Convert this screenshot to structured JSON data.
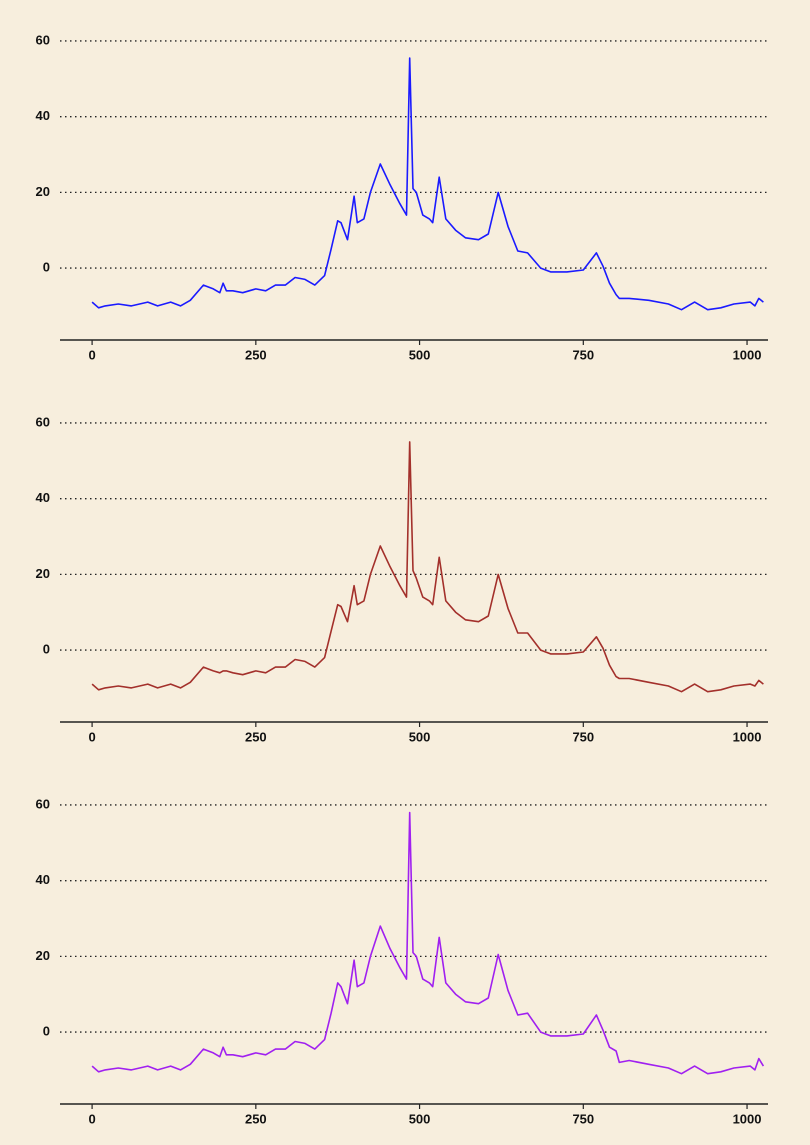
{
  "chart_data": [
    {
      "type": "line",
      "x": [
        0,
        10,
        20,
        40,
        60,
        85,
        100,
        120,
        135,
        150,
        170,
        185,
        195,
        200,
        205,
        215,
        230,
        250,
        265,
        280,
        295,
        310,
        325,
        340,
        355,
        365,
        375,
        380,
        390,
        400,
        405,
        415,
        425,
        440,
        455,
        470,
        480,
        485,
        490,
        495,
        505,
        515,
        520,
        530,
        540,
        555,
        570,
        590,
        605,
        620,
        635,
        650,
        665,
        685,
        700,
        725,
        750,
        770,
        780,
        790,
        800,
        805,
        820,
        850,
        880,
        900,
        920,
        940,
        960,
        980,
        1005,
        1012,
        1018,
        1025
      ],
      "series": [
        {
          "color": "#1a1aff",
          "values": [
            -9,
            -10.5,
            -10,
            -9.5,
            -10,
            -9,
            -10,
            -9,
            -10,
            -8.5,
            -4.5,
            -5.5,
            -6.5,
            -4,
            -6,
            -6,
            -6.5,
            -5.5,
            -6,
            -4.5,
            -4.5,
            -2.5,
            -3,
            -4.5,
            -2,
            5,
            12.5,
            12,
            7.5,
            19,
            12,
            13,
            20,
            27.5,
            22,
            17,
            14,
            55.5,
            21,
            20,
            14,
            13,
            12,
            24,
            13,
            10,
            8,
            7.5,
            9,
            20,
            11,
            4.5,
            4,
            0,
            -1,
            -1,
            -0.5,
            4,
            0.5,
            -4,
            -7,
            -8,
            -8,
            -8.5,
            -9.5,
            -11,
            -9,
            -11,
            -10.5,
            -9.5,
            -9,
            -10,
            -8,
            -9
          ]
        }
      ],
      "xlim": [
        -49,
        1032
      ],
      "ylim": [
        -19,
        63
      ],
      "xticks": [
        0,
        250,
        500,
        750,
        1000
      ],
      "yticks": [
        0,
        20,
        40,
        60
      ],
      "grid": true
    },
    {
      "type": "line",
      "x": [
        0,
        10,
        20,
        40,
        60,
        85,
        100,
        120,
        135,
        150,
        170,
        185,
        195,
        200,
        205,
        215,
        230,
        250,
        265,
        280,
        295,
        310,
        325,
        340,
        355,
        365,
        375,
        380,
        390,
        400,
        405,
        415,
        425,
        440,
        455,
        470,
        480,
        485,
        490,
        495,
        505,
        515,
        520,
        530,
        540,
        555,
        570,
        590,
        605,
        620,
        635,
        650,
        665,
        685,
        700,
        725,
        750,
        770,
        780,
        790,
        800,
        805,
        820,
        850,
        880,
        900,
        920,
        940,
        960,
        980,
        1005,
        1012,
        1018,
        1025
      ],
      "series": [
        {
          "color": "#a3302b",
          "values": [
            -9,
            -10.5,
            -10,
            -9.5,
            -10,
            -9,
            -10,
            -9,
            -10,
            -8.5,
            -4.5,
            -5.5,
            -6,
            -5.5,
            -5.5,
            -6,
            -6.5,
            -5.5,
            -6,
            -4.5,
            -4.5,
            -2.5,
            -3,
            -4.5,
            -2,
            5,
            12,
            11.5,
            7.5,
            17,
            12,
            13,
            20,
            27.5,
            22,
            17,
            14,
            55,
            21,
            19,
            14,
            13,
            12,
            24.5,
            13,
            10,
            8,
            7.5,
            9,
            20,
            11,
            4.5,
            4.5,
            0,
            -1,
            -1,
            -0.5,
            3.5,
            0.5,
            -4,
            -7,
            -7.5,
            -7.5,
            -8.5,
            -9.5,
            -11,
            -9,
            -11,
            -10.5,
            -9.5,
            -9,
            -9.5,
            -8,
            -9
          ]
        }
      ],
      "xlim": [
        -49,
        1032
      ],
      "ylim": [
        -19,
        63
      ],
      "xticks": [
        0,
        250,
        500,
        750,
        1000
      ],
      "yticks": [
        0,
        20,
        40,
        60
      ],
      "grid": true
    },
    {
      "type": "line",
      "x": [
        0,
        10,
        20,
        40,
        60,
        85,
        100,
        120,
        135,
        150,
        170,
        185,
        195,
        200,
        205,
        215,
        230,
        250,
        265,
        280,
        295,
        310,
        325,
        340,
        355,
        365,
        375,
        380,
        390,
        400,
        405,
        415,
        425,
        440,
        455,
        470,
        480,
        485,
        490,
        495,
        505,
        515,
        520,
        530,
        540,
        555,
        570,
        590,
        605,
        620,
        635,
        650,
        665,
        685,
        700,
        725,
        750,
        770,
        780,
        790,
        800,
        805,
        820,
        850,
        880,
        900,
        920,
        940,
        960,
        980,
        1005,
        1012,
        1018,
        1025
      ],
      "series": [
        {
          "color": "#a020f0",
          "values": [
            -9,
            -10.5,
            -10,
            -9.5,
            -10,
            -9,
            -10,
            -9,
            -10,
            -8.5,
            -4.5,
            -5.5,
            -6.5,
            -4,
            -6,
            -6,
            -6.5,
            -5.5,
            -6,
            -4.5,
            -4.5,
            -2.5,
            -3,
            -4.5,
            -2,
            5,
            13,
            12,
            7.5,
            19,
            12,
            13,
            20,
            28,
            22,
            17,
            14,
            58,
            21,
            20,
            14,
            13,
            12,
            25,
            13,
            10,
            8,
            7.5,
            9,
            20.5,
            11,
            4.5,
            5,
            0,
            -1,
            -1,
            -0.5,
            4.5,
            0.5,
            -4,
            -5,
            -8,
            -7.5,
            -8.5,
            -9.5,
            -11,
            -9,
            -11,
            -10.5,
            -9.5,
            -9,
            -10,
            -7,
            -9
          ]
        }
      ],
      "xlim": [
        -49,
        1032
      ],
      "ylim": [
        -19,
        63
      ],
      "xticks": [
        0,
        250,
        500,
        750,
        1000
      ],
      "yticks": [
        0,
        20,
        40,
        60
      ],
      "grid": true
    }
  ]
}
